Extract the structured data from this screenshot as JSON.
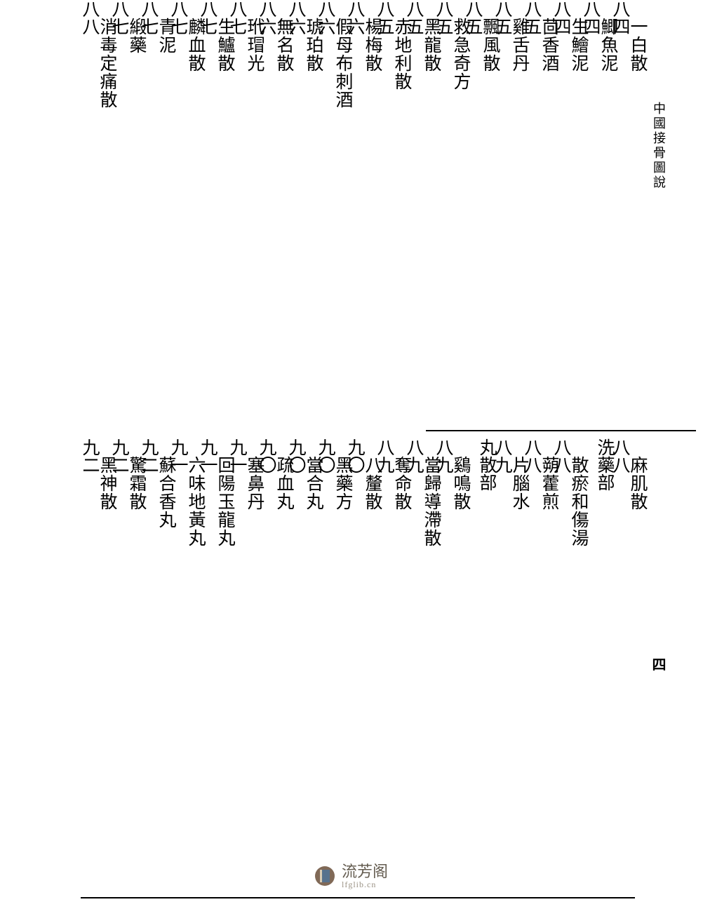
{
  "header": "中國接骨圖說",
  "page_number": "四",
  "watermark": {
    "title": "流芳阁",
    "url": "lfglib.cn"
  },
  "top_block": [
    {
      "name": "一白散",
      "page": "八四",
      "indent": true
    },
    {
      "name": "鯽魚泥",
      "page": "八四",
      "indent": true
    },
    {
      "name": "生鱠泥",
      "page": "八四",
      "indent": true
    },
    {
      "name": "茴香酒",
      "page": "八五",
      "indent": true
    },
    {
      "name": "雞舌丹",
      "page": "八五",
      "indent": true
    },
    {
      "name": "飄風散",
      "page": "八五",
      "indent": true
    },
    {
      "name": "救急奇方",
      "page": "八五",
      "indent": true
    },
    {
      "name": "黑龍散",
      "page": "八五",
      "indent": true
    },
    {
      "name": "赤地利散",
      "page": "八五",
      "indent": true
    },
    {
      "name": "楊梅散",
      "page": "八六",
      "indent": true
    },
    {
      "name": "假母布刺酒",
      "page": "八六",
      "indent": true
    },
    {
      "name": "琥珀散",
      "page": "八六",
      "indent": true
    },
    {
      "name": "無名散",
      "page": "八六",
      "indent": true
    },
    {
      "name": "玳瑁光",
      "page": "八七",
      "indent": true
    },
    {
      "name": "生鱸散",
      "page": "八七",
      "indent": true
    },
    {
      "name": "麟血散",
      "page": "八七",
      "indent": true
    },
    {
      "name": "青泥",
      "page": "八七",
      "indent": true
    },
    {
      "name": "緞藥",
      "page": "八七",
      "indent": true
    },
    {
      "name": "消毒定痛散",
      "page": "八八",
      "indent": true
    }
  ],
  "bottom_block": [
    {
      "name": "麻肌散",
      "page": "八八",
      "indent": true
    },
    {
      "section": "洗藥部"
    },
    {
      "name": "散瘀和傷湯",
      "page": "八八",
      "indent": true
    },
    {
      "name": "蒴藿煎",
      "page": "八八",
      "indent": true
    },
    {
      "name": "片腦水",
      "page": "八九",
      "indent": true
    },
    {
      "section": "丸散部",
      "page": ""
    },
    {
      "name": "鷄鳴散",
      "page": "八九",
      "indent": true
    },
    {
      "name": "當歸導滯散",
      "page": "八九",
      "indent": true
    },
    {
      "name": "奪命散",
      "page": "八九",
      "indent": true
    },
    {
      "name": "八釐散",
      "page": "九〇",
      "indent": true
    },
    {
      "name": "黑藥方",
      "page": "九〇",
      "indent": true
    },
    {
      "name": "當合丸",
      "page": "九〇",
      "indent": true
    },
    {
      "name": "疏血丸",
      "page": "九〇",
      "indent": true
    },
    {
      "name": "塞鼻丹",
      "page": "九一",
      "indent": true
    },
    {
      "name": "回陽玉龍丸",
      "page": "九一",
      "indent": true
    },
    {
      "name": "六味地黃丸",
      "page": "九一",
      "indent": true
    },
    {
      "name": "蘇合香丸",
      "page": "九二",
      "indent": true
    },
    {
      "name": "驚霜散",
      "page": "九二",
      "indent": true
    },
    {
      "name": "黑神散",
      "page": "九二",
      "indent": true
    }
  ]
}
